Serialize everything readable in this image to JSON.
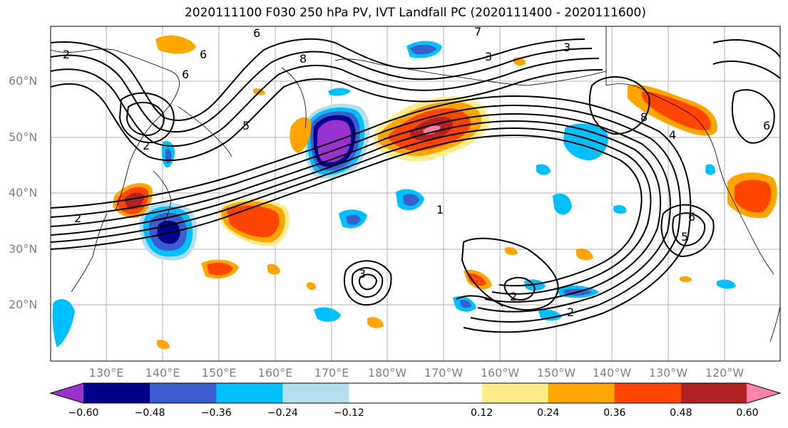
{
  "title": "2020111100 F030 250 hPa PV, IVT Landfall PC (2020111400 - 2020111600)",
  "lat_labels": [
    "60°N",
    "50°N",
    "40°N",
    "30°N",
    "20°N"
  ],
  "lon_labels": [
    "130°E",
    "140°E",
    "150°E",
    "160°E",
    "170°E",
    "180°W",
    "170°W",
    "160°W",
    "150°W",
    "140°W",
    "130°W",
    "120°W"
  ],
  "colorbar": {
    "colors": [
      "#9932CC",
      "#00008B",
      "#3A5FCD",
      "#00BFFF",
      "#B2DFEE",
      "#FFFFFF",
      "#FFFFFF",
      "#FFEC8B",
      "#FFA500",
      "#FF4500",
      "#B22222",
      "#FF82AB"
    ],
    "ticks": [
      "−0.60",
      "−0.48",
      "−0.36",
      "−0.24",
      "−0.12",
      "0.12",
      "0.24",
      "0.36",
      "0.48",
      "0.60"
    ]
  },
  "contour_labels": [
    "6",
    "6",
    "8",
    "3",
    "6",
    "5",
    "2",
    "2",
    "3",
    "7",
    "6",
    "8",
    "4",
    "6",
    "5",
    "3",
    "2",
    "2",
    "2",
    "1"
  ]
}
